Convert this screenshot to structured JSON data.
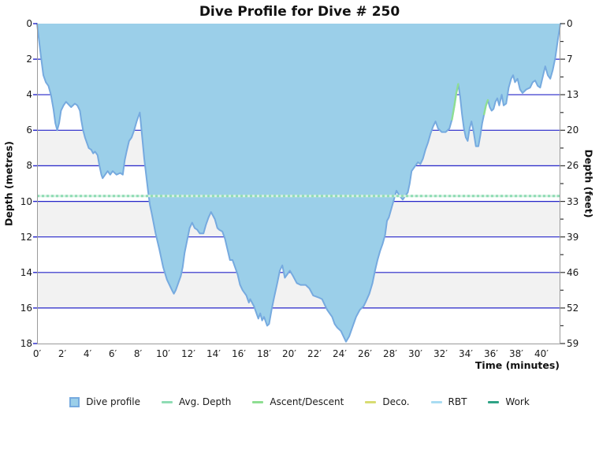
{
  "title": "Dive Profile for Dive # 250",
  "axes": {
    "x_label": "Time (minutes)",
    "y_left_label": "Depth (metres)",
    "y_right_label": "Depth (feet)",
    "x_tick_minutes": [
      0,
      2,
      4,
      6,
      8,
      10,
      12,
      14,
      16,
      18,
      20,
      22,
      24,
      26,
      28,
      30,
      32,
      34,
      36,
      38,
      40
    ],
    "x_tick_labels": [
      "0′",
      "2′",
      "4′",
      "6′",
      "8′",
      "10′",
      "12′",
      "14′",
      "16′",
      "18′",
      "20′",
      "22′",
      "24′",
      "26′",
      "28′",
      "30′",
      "32′",
      "34′",
      "36′",
      "38′",
      "40′"
    ],
    "y_left_tick_metres": [
      0,
      2,
      4,
      6,
      8,
      10,
      12,
      14,
      16,
      18
    ],
    "y_left_tick_labels": [
      "0",
      "2",
      "4",
      "6",
      "8",
      "10",
      "12",
      "14",
      "16",
      "18"
    ],
    "y_right_tick_labels": [
      "0",
      "7",
      "13",
      "20",
      "26",
      "33",
      "39",
      "46",
      "52",
      "59"
    ]
  },
  "chart_data": {
    "type": "area",
    "title": "Dive Profile for Dive # 250",
    "xlabel": "Time (minutes)",
    "ylabel": "Depth (metres)",
    "ylabel_right": "Depth (feet)",
    "xlim": [
      0,
      41.5
    ],
    "ylim": [
      18,
      0
    ],
    "grid": true,
    "gridlines_metres": [
      2,
      4,
      6,
      8,
      10,
      12,
      14,
      16
    ],
    "gray_bands_metres": [
      [
        6,
        8
      ],
      [
        10,
        12
      ],
      [
        14,
        16
      ]
    ],
    "avg_depth_metres": 9.7,
    "fast_ascent_segments_minutes": [
      [
        32.8,
        33.4
      ],
      [
        35.35,
        35.8
      ]
    ],
    "series": [
      {
        "name": "Dive profile",
        "points": [
          [
            0,
            0
          ],
          [
            0.3,
            1.8
          ],
          [
            0.5,
            2.9
          ],
          [
            0.7,
            3.3
          ],
          [
            0.9,
            3.5
          ],
          [
            1.1,
            4.0
          ],
          [
            1.3,
            4.8
          ],
          [
            1.45,
            5.6
          ],
          [
            1.6,
            6.0
          ],
          [
            1.75,
            5.6
          ],
          [
            1.9,
            4.9
          ],
          [
            2.1,
            4.6
          ],
          [
            2.3,
            4.4
          ],
          [
            2.7,
            4.7
          ],
          [
            3.0,
            4.5
          ],
          [
            3.2,
            4.6
          ],
          [
            3.4,
            4.9
          ],
          [
            3.5,
            5.4
          ],
          [
            3.65,
            6.0
          ],
          [
            3.8,
            6.4
          ],
          [
            4.1,
            7.0
          ],
          [
            4.3,
            7.1
          ],
          [
            4.45,
            7.3
          ],
          [
            4.6,
            7.2
          ],
          [
            4.8,
            7.4
          ],
          [
            4.95,
            8.0
          ],
          [
            5.1,
            8.5
          ],
          [
            5.2,
            8.7
          ],
          [
            5.4,
            8.5
          ],
          [
            5.6,
            8.3
          ],
          [
            5.8,
            8.5
          ],
          [
            6.0,
            8.3
          ],
          [
            6.3,
            8.5
          ],
          [
            6.6,
            8.4
          ],
          [
            6.8,
            8.5
          ],
          [
            6.95,
            7.7
          ],
          [
            7.1,
            7.2
          ],
          [
            7.3,
            6.6
          ],
          [
            7.5,
            6.4
          ],
          [
            7.7,
            6.0
          ],
          [
            7.9,
            5.5
          ],
          [
            8.05,
            5.2
          ],
          [
            8.15,
            5.0
          ],
          [
            8.3,
            6.1
          ],
          [
            8.5,
            7.6
          ],
          [
            8.65,
            8.5
          ],
          [
            8.8,
            9.4
          ],
          [
            8.95,
            10.2
          ],
          [
            9.1,
            10.7
          ],
          [
            9.4,
            11.8
          ],
          [
            9.7,
            12.7
          ],
          [
            10.0,
            13.7
          ],
          [
            10.3,
            14.4
          ],
          [
            10.5,
            14.7
          ],
          [
            10.7,
            15.0
          ],
          [
            10.85,
            15.2
          ],
          [
            11.0,
            15.0
          ],
          [
            11.2,
            14.6
          ],
          [
            11.4,
            14.2
          ],
          [
            11.55,
            13.7
          ],
          [
            11.7,
            12.9
          ],
          [
            11.9,
            12.2
          ],
          [
            12.1,
            11.5
          ],
          [
            12.3,
            11.2
          ],
          [
            12.5,
            11.5
          ],
          [
            12.7,
            11.6
          ],
          [
            12.9,
            11.8
          ],
          [
            13.2,
            11.8
          ],
          [
            13.4,
            11.3
          ],
          [
            13.6,
            10.9
          ],
          [
            13.8,
            10.6
          ],
          [
            14.1,
            11.0
          ],
          [
            14.3,
            11.5
          ],
          [
            14.45,
            11.6
          ],
          [
            14.7,
            11.7
          ],
          [
            14.9,
            12.1
          ],
          [
            15.1,
            12.7
          ],
          [
            15.3,
            13.3
          ],
          [
            15.5,
            13.3
          ],
          [
            15.7,
            13.7
          ],
          [
            15.9,
            14.1
          ],
          [
            16.1,
            14.7
          ],
          [
            16.3,
            15.0
          ],
          [
            16.6,
            15.3
          ],
          [
            16.8,
            15.7
          ],
          [
            16.9,
            15.5
          ],
          [
            17.2,
            15.9
          ],
          [
            17.4,
            16.3
          ],
          [
            17.55,
            16.6
          ],
          [
            17.7,
            16.3
          ],
          [
            17.85,
            16.7
          ],
          [
            18.0,
            16.5
          ],
          [
            18.25,
            17.0
          ],
          [
            18.4,
            16.9
          ],
          [
            18.6,
            16.1
          ],
          [
            18.8,
            15.4
          ],
          [
            19.05,
            14.6
          ],
          [
            19.25,
            13.9
          ],
          [
            19.45,
            13.6
          ],
          [
            19.65,
            14.3
          ],
          [
            19.85,
            14.1
          ],
          [
            20.05,
            13.9
          ],
          [
            20.3,
            14.2
          ],
          [
            20.6,
            14.6
          ],
          [
            20.9,
            14.7
          ],
          [
            21.3,
            14.7
          ],
          [
            21.6,
            14.9
          ],
          [
            21.9,
            15.3
          ],
          [
            22.3,
            15.4
          ],
          [
            22.6,
            15.5
          ],
          [
            22.8,
            15.8
          ],
          [
            23.0,
            16.1
          ],
          [
            23.2,
            16.3
          ],
          [
            23.4,
            16.5
          ],
          [
            23.6,
            16.9
          ],
          [
            23.8,
            17.1
          ],
          [
            24.1,
            17.3
          ],
          [
            24.3,
            17.6
          ],
          [
            24.5,
            17.9
          ],
          [
            24.75,
            17.6
          ],
          [
            25.0,
            17.1
          ],
          [
            25.3,
            16.5
          ],
          [
            25.6,
            16.1
          ],
          [
            25.9,
            15.9
          ],
          [
            26.1,
            15.6
          ],
          [
            26.35,
            15.2
          ],
          [
            26.6,
            14.6
          ],
          [
            26.8,
            13.9
          ],
          [
            27.0,
            13.3
          ],
          [
            27.2,
            12.8
          ],
          [
            27.4,
            12.4
          ],
          [
            27.6,
            11.9
          ],
          [
            27.75,
            11.1
          ],
          [
            27.9,
            10.9
          ],
          [
            28.1,
            10.4
          ],
          [
            28.3,
            9.9
          ],
          [
            28.5,
            9.4
          ],
          [
            28.75,
            9.7
          ],
          [
            29.0,
            9.9
          ],
          [
            29.2,
            9.7
          ],
          [
            29.4,
            9.5
          ],
          [
            29.55,
            9.0
          ],
          [
            29.7,
            8.3
          ],
          [
            29.9,
            8.1
          ],
          [
            30.2,
            7.8
          ],
          [
            30.4,
            7.9
          ],
          [
            30.6,
            7.6
          ],
          [
            30.8,
            7.1
          ],
          [
            31.0,
            6.7
          ],
          [
            31.2,
            6.2
          ],
          [
            31.4,
            5.8
          ],
          [
            31.6,
            5.5
          ],
          [
            31.8,
            5.9
          ],
          [
            32.1,
            6.1
          ],
          [
            32.4,
            6.1
          ],
          [
            32.7,
            5.9
          ],
          [
            32.9,
            5.4
          ],
          [
            33.1,
            4.6
          ],
          [
            33.25,
            3.9
          ],
          [
            33.4,
            3.4
          ],
          [
            33.55,
            4.1
          ],
          [
            33.7,
            5.1
          ],
          [
            33.85,
            5.9
          ],
          [
            34.0,
            6.4
          ],
          [
            34.15,
            6.6
          ],
          [
            34.3,
            5.9
          ],
          [
            34.45,
            5.5
          ],
          [
            34.6,
            6.0
          ],
          [
            34.8,
            6.9
          ],
          [
            35.0,
            6.9
          ],
          [
            35.15,
            6.3
          ],
          [
            35.3,
            5.6
          ],
          [
            35.45,
            5.1
          ],
          [
            35.6,
            4.6
          ],
          [
            35.75,
            4.3
          ],
          [
            35.9,
            4.7
          ],
          [
            36.05,
            4.9
          ],
          [
            36.2,
            4.8
          ],
          [
            36.35,
            4.4
          ],
          [
            36.5,
            4.2
          ],
          [
            36.65,
            4.6
          ],
          [
            36.85,
            4.0
          ],
          [
            37.0,
            4.6
          ],
          [
            37.2,
            4.5
          ],
          [
            37.4,
            3.6
          ],
          [
            37.6,
            3.1
          ],
          [
            37.75,
            2.9
          ],
          [
            37.9,
            3.3
          ],
          [
            38.1,
            3.1
          ],
          [
            38.3,
            3.7
          ],
          [
            38.5,
            3.9
          ],
          [
            38.8,
            3.7
          ],
          [
            39.1,
            3.6
          ],
          [
            39.3,
            3.3
          ],
          [
            39.5,
            3.2
          ],
          [
            39.7,
            3.5
          ],
          [
            39.9,
            3.6
          ],
          [
            40.1,
            3.0
          ],
          [
            40.3,
            2.4
          ],
          [
            40.5,
            2.9
          ],
          [
            40.7,
            3.1
          ],
          [
            40.9,
            2.6
          ],
          [
            41.1,
            1.9
          ],
          [
            41.3,
            0.9
          ],
          [
            41.5,
            0.0
          ]
        ]
      }
    ]
  },
  "legend": {
    "items": [
      {
        "label": "Dive profile",
        "color": "#9bcfe9",
        "border": "#76aadf",
        "swatch": "square"
      },
      {
        "label": "Avg. Depth",
        "color": "#8fdcb4",
        "swatch": "line"
      },
      {
        "label": "Ascent/Descent",
        "color": "#8ede92",
        "swatch": "line"
      },
      {
        "label": "Deco.",
        "color": "#d8dc72",
        "swatch": "line"
      },
      {
        "label": "RBT",
        "color": "#a9dcf2",
        "swatch": "line"
      },
      {
        "label": "Work",
        "color": "#2fa386",
        "swatch": "line"
      }
    ]
  },
  "colors": {
    "profile_fill": "#9bcfe9",
    "profile_stroke": "#76aadf",
    "gridline_blue": "#2424c8",
    "band_gray": "#f2f2f2",
    "avg_line": "#8fdcb4",
    "avg_line_light": "#d7f1e3",
    "ascent_green": "#8ede92",
    "axis_line": "#9a9a9a",
    "tick_dark": "#333333",
    "text": "#1a1a1a"
  }
}
